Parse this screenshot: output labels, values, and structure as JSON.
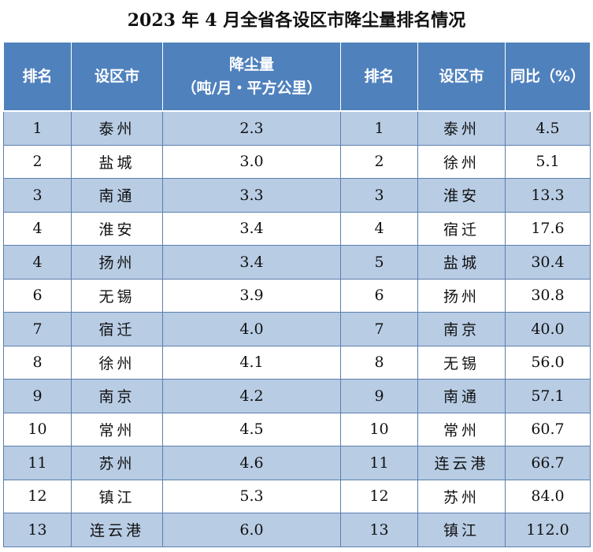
{
  "title": "2023 年 4 月全省各设区市降尘量排名情况",
  "headers": {
    "rank1": "排名",
    "city1": "设区市",
    "dust_main": "降尘量",
    "dust_unit": "（吨/月・平方公里）",
    "rank2": "排名",
    "city2": "设区市",
    "yoy": "同比（%）"
  },
  "rows": [
    {
      "rank1": "1",
      "city1": "泰州",
      "dust": "2.3",
      "rank2": "1",
      "city2": "泰州",
      "yoy": "4.5"
    },
    {
      "rank1": "2",
      "city1": "盐城",
      "dust": "3.0",
      "rank2": "2",
      "city2": "徐州",
      "yoy": "5.1"
    },
    {
      "rank1": "3",
      "city1": "南通",
      "dust": "3.3",
      "rank2": "3",
      "city2": "淮安",
      "yoy": "13.3"
    },
    {
      "rank1": "4",
      "city1": "淮安",
      "dust": "3.4",
      "rank2": "4",
      "city2": "宿迁",
      "yoy": "17.6"
    },
    {
      "rank1": "4",
      "city1": "扬州",
      "dust": "3.4",
      "rank2": "5",
      "city2": "盐城",
      "yoy": "30.4"
    },
    {
      "rank1": "6",
      "city1": "无锡",
      "dust": "3.9",
      "rank2": "6",
      "city2": "扬州",
      "yoy": "30.8"
    },
    {
      "rank1": "7",
      "city1": "宿迁",
      "dust": "4.0",
      "rank2": "7",
      "city2": "南京",
      "yoy": "40.0"
    },
    {
      "rank1": "8",
      "city1": "徐州",
      "dust": "4.1",
      "rank2": "8",
      "city2": "无锡",
      "yoy": "56.0"
    },
    {
      "rank1": "9",
      "city1": "南京",
      "dust": "4.2",
      "rank2": "9",
      "city2": "南通",
      "yoy": "57.1"
    },
    {
      "rank1": "10",
      "city1": "常州",
      "dust": "4.5",
      "rank2": "10",
      "city2": "常州",
      "yoy": "60.7"
    },
    {
      "rank1": "11",
      "city1": "苏州",
      "dust": "4.6",
      "rank2": "11",
      "city2": "连云港",
      "yoy": "66.7"
    },
    {
      "rank1": "12",
      "city1": "镇江",
      "dust": "5.3",
      "rank2": "12",
      "city2": "苏州",
      "yoy": "84.0"
    },
    {
      "rank1": "13",
      "city1": "连云港",
      "dust": "6.0",
      "rank2": "13",
      "city2": "镇江",
      "yoy": "112.0"
    }
  ],
  "colors": {
    "header_bg": "#4f81bd",
    "stripe": "#b8cce4",
    "border": "#5b7fae"
  }
}
